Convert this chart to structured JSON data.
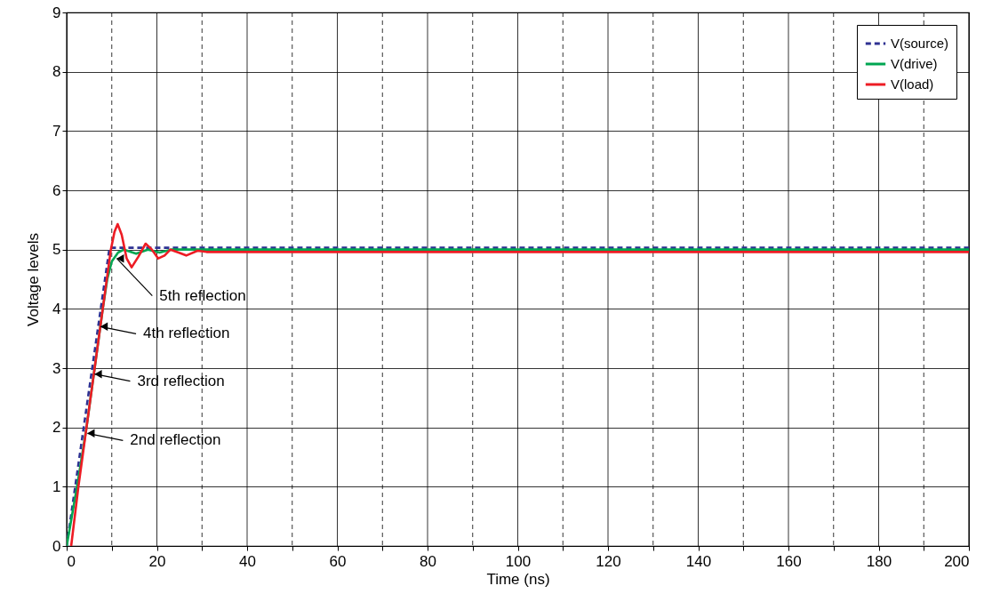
{
  "chart_data": {
    "type": "line",
    "xlabel": "Time (ns)",
    "ylabel": "Voltage levels",
    "xlim": [
      0,
      200
    ],
    "ylim": [
      0,
      9
    ],
    "xticks": [
      0,
      {
        "value": 10,
        "label": null
      },
      20,
      {
        "value": 30,
        "label": null
      },
      40,
      {
        "value": 50,
        "label": null
      },
      60,
      {
        "value": 70,
        "label": null
      },
      80,
      {
        "value": 90,
        "label": null
      },
      100,
      {
        "value": 110,
        "label": null
      },
      120,
      {
        "value": 130,
        "label": null
      },
      140,
      {
        "value": 150,
        "label": null
      },
      160,
      {
        "value": 170,
        "label": null
      },
      180,
      {
        "value": 190,
        "label": null
      },
      200
    ],
    "yticks": [
      0,
      1,
      2,
      3,
      4,
      5,
      6,
      7,
      8,
      9
    ],
    "grid": true,
    "legend": "top right",
    "marker": "none",
    "series": [
      {
        "name": "V(source)",
        "color": "#2e3192",
        "line_style": "dashed",
        "x": [
          0,
          9.5,
          200
        ],
        "values": [
          0,
          5.03,
          5.03
        ]
      },
      {
        "name": "V(drive)",
        "color": "#00a651",
        "line_style": "solid",
        "x": [
          0,
          2.3,
          4.4,
          6.2,
          8.0,
          9.0,
          10.0,
          11.4,
          12.7,
          15.4,
          18.0,
          20.6,
          23.2,
          200
        ],
        "values": [
          0,
          1,
          2,
          3,
          4,
          4.5,
          4.8,
          4.95,
          5.0,
          4.93,
          5.0,
          4.95,
          5.0,
          5.0
        ]
      },
      {
        "name": "V(load)",
        "color": "#ed1c24",
        "line_style": "solid",
        "x": [
          1.0,
          2.6,
          4.4,
          6.2,
          8.0,
          9.8,
          10.6,
          11.3,
          12.2,
          13.3,
          14.4,
          15.9,
          17.5,
          18.9,
          20.3,
          21.7,
          23.0,
          24.8,
          26.5,
          29.0,
          31.0,
          200
        ],
        "values": [
          0,
          1,
          2,
          3,
          4,
          5,
          5.3,
          5.43,
          5.25,
          4.85,
          4.7,
          4.88,
          5.1,
          5.0,
          4.85,
          4.9,
          5.0,
          4.95,
          4.9,
          4.98,
          4.96,
          4.96
        ]
      }
    ],
    "annotations": [
      {
        "text": "5th reflection",
        "x": 11.1,
        "y": 4.85
      },
      {
        "text": "4th reflection",
        "x": 7.5,
        "y": 3.7
      },
      {
        "text": "3rd reflection",
        "x": 6.2,
        "y": 2.9
      },
      {
        "text": "2nd reflection",
        "x": 4.6,
        "y": 1.9
      }
    ]
  }
}
